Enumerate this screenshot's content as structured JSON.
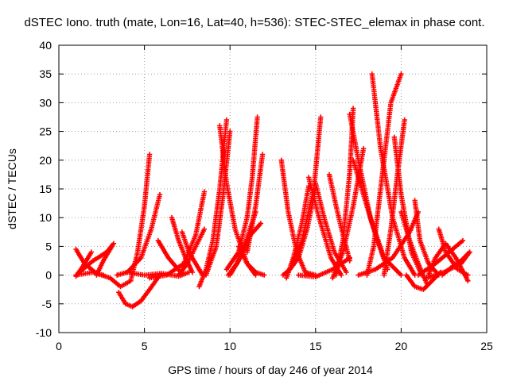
{
  "chart_data": {
    "type": "scatter",
    "title": "dSTEC Iono. truth (mate, Lon=16, Lat=40, h=536): STEC-STEC_elemax in phase cont.",
    "xlabel": "GPS time / hours of day 246 of year 2014",
    "ylabel": "dSTEC  / TECUs",
    "xlim": [
      0,
      25
    ],
    "ylim": [
      -10,
      40
    ],
    "xticks": [
      0,
      5,
      10,
      15,
      20,
      25
    ],
    "yticks": [
      -10,
      -5,
      0,
      5,
      10,
      15,
      20,
      25,
      30,
      35,
      40
    ],
    "xtick_labels": [
      "0",
      "5",
      "10",
      "15",
      "20",
      "25"
    ],
    "ytick_labels": [
      "-10",
      "-5",
      "0",
      "5",
      "10",
      "15",
      "20",
      "25",
      "30",
      "35",
      "40"
    ],
    "grid": true,
    "marker": "+",
    "color": "#ff0000",
    "series": [
      {
        "x": [
          1.0,
          2.0,
          3.0,
          3.6,
          4.2,
          4.6,
          5.0,
          5.3
        ],
        "y": [
          0.0,
          0.5,
          -0.5,
          -2.0,
          -1.0,
          4.0,
          12.0,
          21.0
        ]
      },
      {
        "x": [
          1.0,
          1.5,
          2.2,
          2.6
        ],
        "y": [
          4.5,
          2.0,
          0.3,
          0.0
        ]
      },
      {
        "x": [
          1.0,
          1.4,
          1.9
        ],
        "y": [
          -0.2,
          1.5,
          4.0
        ]
      },
      {
        "x": [
          2.2,
          2.6,
          3.1
        ],
        "y": [
          0.0,
          2.5,
          5.0
        ]
      },
      {
        "x": [
          1.2,
          2.0,
          2.8,
          3.2
        ],
        "y": [
          0.5,
          2.5,
          4.0,
          5.5
        ]
      },
      {
        "x": [
          3.5,
          3.9,
          4.3,
          4.8,
          5.3,
          5.9
        ],
        "y": [
          -3.0,
          -5.0,
          -5.5,
          -4.5,
          -2.5,
          0.0
        ]
      },
      {
        "x": [
          3.4,
          4.0,
          4.8,
          5.4,
          5.9
        ],
        "y": [
          0.0,
          0.5,
          3.0,
          8.0,
          14.0
        ]
      },
      {
        "x": [
          4.0,
          5.0,
          6.0,
          7.0,
          7.6
        ],
        "y": [
          0.5,
          0.0,
          0.3,
          -0.2,
          0.5
        ]
      },
      {
        "x": [
          5.8,
          6.4,
          7.2
        ],
        "y": [
          6.0,
          3.0,
          0.2
        ]
      },
      {
        "x": [
          6.6,
          7.0,
          7.4,
          7.8
        ],
        "y": [
          10.0,
          6.0,
          3.0,
          0.5
        ]
      },
      {
        "x": [
          7.2,
          7.6,
          8.2,
          8.4
        ],
        "y": [
          7.5,
          4.0,
          1.0,
          0.0
        ]
      },
      {
        "x": [
          5.3,
          6.3,
          7.3,
          8.0,
          8.5
        ],
        "y": [
          -0.5,
          0.0,
          2.0,
          7.0,
          14.5
        ]
      },
      {
        "x": [
          7.0,
          7.5,
          8.0,
          8.5
        ],
        "y": [
          0.0,
          2.0,
          5.0,
          8.0
        ]
      },
      {
        "x": [
          8.2,
          8.6,
          9.0,
          9.4,
          9.8
        ],
        "y": [
          -2.0,
          1.0,
          6.0,
          15.0,
          27.0
        ]
      },
      {
        "x": [
          8.6,
          9.2,
          9.6,
          10.0
        ],
        "y": [
          0.0,
          5.0,
          14.0,
          25.0
        ]
      },
      {
        "x": [
          9.4,
          9.8,
          10.3,
          11.0,
          11.5
        ],
        "y": [
          26.0,
          16.0,
          8.0,
          2.0,
          0.0
        ]
      },
      {
        "x": [
          9.8,
          10.5,
          11.0,
          11.3,
          11.6
        ],
        "y": [
          1.0,
          4.0,
          10.0,
          17.0,
          27.5
        ]
      },
      {
        "x": [
          9.9,
          10.4,
          11.0,
          11.5
        ],
        "y": [
          0.0,
          2.0,
          6.5,
          11.0
        ]
      },
      {
        "x": [
          11.0,
          11.5,
          11.9
        ],
        "y": [
          4.0,
          12.0,
          21.0
        ]
      },
      {
        "x": [
          10.0,
          10.6,
          11.2,
          11.8
        ],
        "y": [
          0.0,
          3.0,
          7.0,
          9.0
        ]
      },
      {
        "x": [
          10.5,
          11.0,
          11.5,
          12.0
        ],
        "y": [
          5.0,
          2.0,
          0.5,
          0.0
        ]
      },
      {
        "x": [
          13.0,
          13.4,
          13.9,
          14.4,
          15.0
        ],
        "y": [
          20.0,
          11.0,
          4.0,
          0.5,
          0.0
        ]
      },
      {
        "x": [
          13.1,
          13.5,
          14.0,
          14.5,
          15.0
        ],
        "y": [
          0.0,
          1.0,
          3.0,
          8.0,
          15.0
        ]
      },
      {
        "x": [
          13.3,
          13.7,
          14.2,
          14.6
        ],
        "y": [
          -0.5,
          3.0,
          9.0,
          15.5
        ]
      },
      {
        "x": [
          13.6,
          14.2,
          14.9,
          15.3
        ],
        "y": [
          2.0,
          6.0,
          15.0,
          27.5
        ]
      },
      {
        "x": [
          14.6,
          15.2,
          15.9,
          16.5
        ],
        "y": [
          17.0,
          10.0,
          3.0,
          0.0
        ]
      },
      {
        "x": [
          15.0,
          15.5,
          16.1,
          16.8
        ],
        "y": [
          16.0,
          10.0,
          4.0,
          0.5
        ]
      },
      {
        "x": [
          14.0,
          15.0,
          16.0,
          17.0
        ],
        "y": [
          0.0,
          -0.3,
          1.0,
          3.0
        ]
      },
      {
        "x": [
          16.2,
          16.6,
          17.0,
          17.2
        ],
        "y": [
          0.0,
          6.0,
          18.0,
          29.0
        ]
      },
      {
        "x": [
          15.8,
          16.2,
          16.6,
          17.0
        ],
        "y": [
          17.5,
          12.0,
          7.0,
          2.5
        ]
      },
      {
        "x": [
          16.0,
          16.6,
          17.2,
          17.8
        ],
        "y": [
          -0.5,
          4.0,
          12.0,
          22.0
        ]
      },
      {
        "x": [
          17.0,
          17.5,
          18.2,
          19.0,
          20.0
        ],
        "y": [
          28.0,
          20.0,
          10.0,
          3.0,
          0.0
        ]
      },
      {
        "x": [
          17.2,
          17.8,
          18.5,
          19.2
        ],
        "y": [
          20.0,
          14.0,
          7.0,
          1.0
        ]
      },
      {
        "x": [
          18.0,
          18.4,
          18.8,
          19.4,
          20.0
        ],
        "y": [
          0.0,
          5.0,
          15.0,
          30.0,
          35.0
        ]
      },
      {
        "x": [
          18.3,
          18.8,
          19.5,
          20.2,
          20.8
        ],
        "y": [
          35.0,
          22.0,
          10.0,
          3.0,
          0.0
        ]
      },
      {
        "x": [
          19.0,
          19.4,
          19.8,
          20.2
        ],
        "y": [
          0.0,
          8.0,
          18.0,
          27.0
        ]
      },
      {
        "x": [
          19.6,
          20.0,
          20.6,
          21.2
        ],
        "y": [
          24.0,
          14.0,
          4.0,
          0.0
        ]
      },
      {
        "x": [
          17.5,
          18.5,
          19.5,
          20.5,
          21.0
        ],
        "y": [
          0.0,
          1.0,
          3.0,
          7.5,
          11.0
        ]
      },
      {
        "x": [
          20.0,
          20.5,
          21.0,
          21.5
        ],
        "y": [
          11.0,
          6.0,
          2.0,
          -1.5
        ]
      },
      {
        "x": [
          20.3,
          20.8,
          21.3,
          21.8,
          22.3
        ],
        "y": [
          0.0,
          -2.0,
          -2.5,
          -1.0,
          0.5
        ]
      },
      {
        "x": [
          20.8,
          21.1,
          21.6,
          22.2
        ],
        "y": [
          13.0,
          6.0,
          2.0,
          0.0
        ]
      },
      {
        "x": [
          21.6,
          22.0,
          22.6,
          23.2,
          23.9
        ],
        "y": [
          0.0,
          3.0,
          5.5,
          3.0,
          -1.0
        ]
      },
      {
        "x": [
          21.0,
          22.0,
          23.0,
          23.6
        ],
        "y": [
          0.0,
          2.0,
          4.5,
          6.0
        ]
      },
      {
        "x": [
          22.2,
          22.6,
          23.3,
          23.9
        ],
        "y": [
          8.0,
          4.0,
          1.0,
          0.0
        ]
      },
      {
        "x": [
          22.4,
          23.0,
          23.5,
          24.0
        ],
        "y": [
          0.0,
          1.5,
          2.5,
          4.0
        ]
      },
      {
        "x": [
          21.5,
          22.5,
          23.5,
          24.0
        ],
        "y": [
          -0.5,
          0.5,
          2.0,
          4.0
        ]
      }
    ]
  }
}
